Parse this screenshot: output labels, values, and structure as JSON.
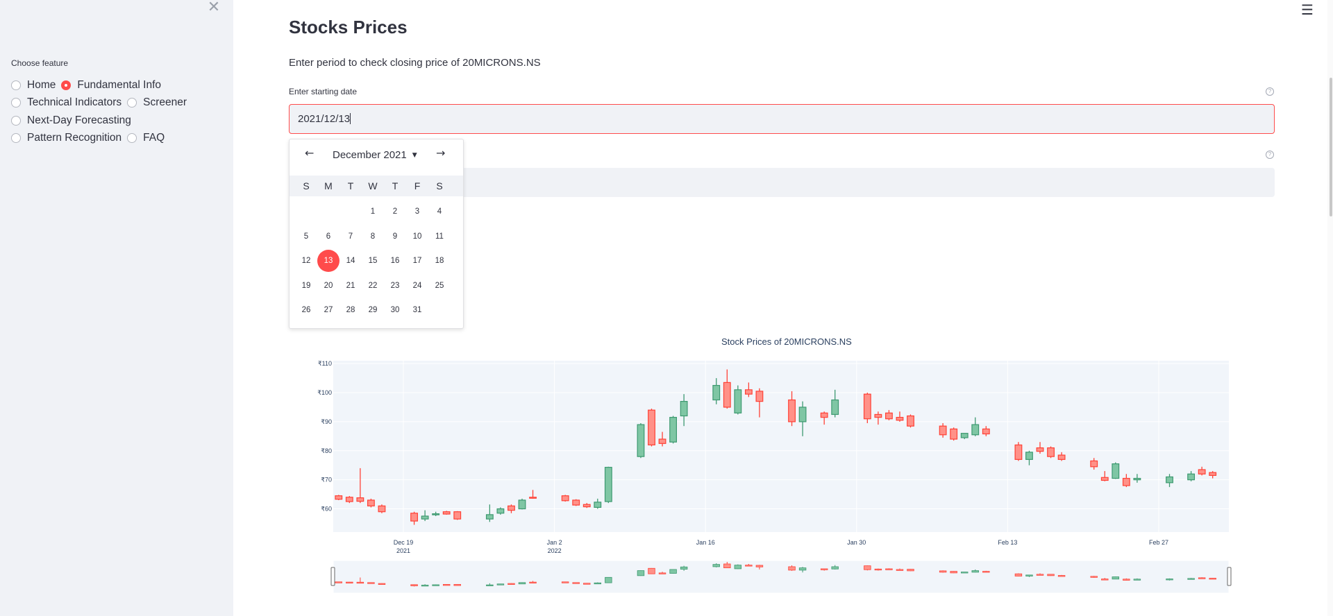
{
  "sidebar": {
    "close_icon": "close-icon",
    "label": "Choose feature",
    "options": [
      {
        "label": "Home",
        "selected": false
      },
      {
        "label": "Fundamental Info",
        "selected": true
      },
      {
        "label": "Technical Indicators",
        "selected": false
      },
      {
        "label": "Screener",
        "selected": false
      },
      {
        "label": "Next-Day Forecasting",
        "selected": false
      },
      {
        "label": "Pattern Recognition",
        "selected": false
      },
      {
        "label": "FAQ",
        "selected": false
      }
    ]
  },
  "header": {
    "menu_icon": "hamburger-icon"
  },
  "main": {
    "title": "Stocks Prices",
    "subtitle": "Enter period to check closing price of 20MICRONS.NS",
    "start_label": "Enter starting date",
    "start_value": "2021/12/13",
    "end_value": "",
    "help_icon": "help-icon"
  },
  "calendar": {
    "month_label": "December 2021",
    "prev_icon": "arrow-left-icon",
    "next_icon": "arrow-right-icon",
    "weekdays": [
      "S",
      "M",
      "T",
      "W",
      "T",
      "F",
      "S"
    ],
    "first_weekday": 3,
    "days_in_month": 31,
    "selected_day": 13
  },
  "chart_data": {
    "type": "candlestick",
    "title": "Stock Prices of 20MICRONS.NS",
    "y_ticks": [
      "₹60",
      "₹70",
      "₹80",
      "₹90",
      "₹100",
      "₹110"
    ],
    "ylim": [
      52,
      111
    ],
    "x_ticks": [
      {
        "date": "2021-12-19",
        "label": "Dec 19",
        "sub": "2021"
      },
      {
        "date": "2022-01-02",
        "label": "Jan 2",
        "sub": "2022"
      },
      {
        "date": "2022-01-16",
        "label": "Jan 16",
        "sub": ""
      },
      {
        "date": "2022-01-30",
        "label": "Jan 30",
        "sub": ""
      },
      {
        "date": "2022-02-13",
        "label": "Feb 13",
        "sub": ""
      },
      {
        "date": "2022-02-27",
        "label": "Feb 27",
        "sub": ""
      }
    ],
    "x_range": [
      "2021-12-13",
      "2022-03-05"
    ],
    "range_slider": true,
    "increasing_color": "#3d9970",
    "decreasing_color": "#ff4136",
    "candles": [
      {
        "date": "2021-12-13",
        "open": 64.5,
        "high": 64.8,
        "low": 63.0,
        "close": 63.3
      },
      {
        "date": "2021-12-14",
        "open": 64.0,
        "high": 64.4,
        "low": 62.0,
        "close": 62.5
      },
      {
        "date": "2021-12-15",
        "open": 63.8,
        "high": 74.0,
        "low": 62.0,
        "close": 62.6
      },
      {
        "date": "2021-12-16",
        "open": 63.0,
        "high": 63.5,
        "low": 60.5,
        "close": 61.0
      },
      {
        "date": "2021-12-17",
        "open": 61.0,
        "high": 61.5,
        "low": 58.5,
        "close": 59.0
      },
      {
        "date": "2021-12-20",
        "open": 58.5,
        "high": 59.0,
        "low": 54.5,
        "close": 55.8
      },
      {
        "date": "2021-12-21",
        "open": 56.5,
        "high": 59.5,
        "low": 55.8,
        "close": 57.5
      },
      {
        "date": "2021-12-22",
        "open": 58.0,
        "high": 59.0,
        "low": 57.5,
        "close": 58.3
      },
      {
        "date": "2021-12-23",
        "open": 59.0,
        "high": 59.3,
        "low": 58.0,
        "close": 58.2
      },
      {
        "date": "2021-12-24",
        "open": 59.0,
        "high": 59.2,
        "low": 56.2,
        "close": 56.5
      },
      {
        "date": "2021-12-27",
        "open": 56.5,
        "high": 61.5,
        "low": 55.5,
        "close": 58.0
      },
      {
        "date": "2021-12-28",
        "open": 58.5,
        "high": 60.5,
        "low": 58.0,
        "close": 60.0
      },
      {
        "date": "2021-12-29",
        "open": 61.0,
        "high": 61.5,
        "low": 58.5,
        "close": 59.5
      },
      {
        "date": "2021-12-30",
        "open": 60.0,
        "high": 63.5,
        "low": 59.8,
        "close": 63.0
      },
      {
        "date": "2021-12-31",
        "open": 64.0,
        "high": 66.5,
        "low": 63.5,
        "close": 63.8
      },
      {
        "date": "2022-01-03",
        "open": 64.5,
        "high": 64.8,
        "low": 62.5,
        "close": 62.8
      },
      {
        "date": "2022-01-04",
        "open": 63.0,
        "high": 63.3,
        "low": 61.0,
        "close": 61.3
      },
      {
        "date": "2022-01-05",
        "open": 61.5,
        "high": 62.0,
        "low": 60.3,
        "close": 60.7
      },
      {
        "date": "2022-01-06",
        "open": 60.5,
        "high": 63.5,
        "low": 60.0,
        "close": 62.3
      },
      {
        "date": "2022-01-07",
        "open": 62.5,
        "high": 74.5,
        "low": 62.0,
        "close": 74.3
      },
      {
        "date": "2022-01-10",
        "open": 78.0,
        "high": 89.5,
        "low": 77.5,
        "close": 89.0
      },
      {
        "date": "2022-01-11",
        "open": 94.0,
        "high": 94.5,
        "low": 81.5,
        "close": 82.0
      },
      {
        "date": "2022-01-12",
        "open": 84.0,
        "high": 86.5,
        "low": 81.5,
        "close": 82.5
      },
      {
        "date": "2022-01-13",
        "open": 83.0,
        "high": 92.0,
        "low": 82.5,
        "close": 91.5
      },
      {
        "date": "2022-01-14",
        "open": 92.0,
        "high": 99.5,
        "low": 88.5,
        "close": 97.0
      },
      {
        "date": "2022-01-17",
        "open": 97.5,
        "high": 105.0,
        "low": 96.0,
        "close": 102.5
      },
      {
        "date": "2022-01-18",
        "open": 103.5,
        "high": 108.0,
        "low": 94.5,
        "close": 95.0
      },
      {
        "date": "2022-01-19",
        "open": 93.0,
        "high": 102.5,
        "low": 92.5,
        "close": 101.0
      },
      {
        "date": "2022-01-20",
        "open": 101.0,
        "high": 103.5,
        "low": 98.5,
        "close": 99.5
      },
      {
        "date": "2022-01-21",
        "open": 100.5,
        "high": 101.5,
        "low": 91.5,
        "close": 97.0
      },
      {
        "date": "2022-01-24",
        "open": 97.5,
        "high": 100.5,
        "low": 88.5,
        "close": 90.0
      },
      {
        "date": "2022-01-25",
        "open": 90.0,
        "high": 97.0,
        "low": 85.0,
        "close": 95.0
      },
      {
        "date": "2022-01-27",
        "open": 93.0,
        "high": 93.5,
        "low": 89.0,
        "close": 91.5
      },
      {
        "date": "2022-01-28",
        "open": 92.5,
        "high": 101.0,
        "low": 91.5,
        "close": 97.5
      },
      {
        "date": "2022-01-31",
        "open": 99.5,
        "high": 100.0,
        "low": 89.5,
        "close": 91.0
      },
      {
        "date": "2022-02-01",
        "open": 92.5,
        "high": 93.5,
        "low": 89.0,
        "close": 91.5
      },
      {
        "date": "2022-02-02",
        "open": 93.0,
        "high": 94.0,
        "low": 90.5,
        "close": 91.0
      },
      {
        "date": "2022-02-03",
        "open": 91.5,
        "high": 93.5,
        "low": 90.0,
        "close": 90.5
      },
      {
        "date": "2022-02-04",
        "open": 92.0,
        "high": 92.5,
        "low": 88.0,
        "close": 88.5
      },
      {
        "date": "2022-02-07",
        "open": 88.5,
        "high": 89.5,
        "low": 84.5,
        "close": 85.5
      },
      {
        "date": "2022-02-08",
        "open": 87.5,
        "high": 88.0,
        "low": 83.5,
        "close": 84.0
      },
      {
        "date": "2022-02-09",
        "open": 84.5,
        "high": 86.0,
        "low": 84.0,
        "close": 86.0
      },
      {
        "date": "2022-02-10",
        "open": 85.5,
        "high": 91.5,
        "low": 85.0,
        "close": 89.0
      },
      {
        "date": "2022-02-11",
        "open": 87.5,
        "high": 88.5,
        "low": 85.0,
        "close": 85.8
      },
      {
        "date": "2022-02-14",
        "open": 82.0,
        "high": 83.0,
        "low": 76.5,
        "close": 77.0
      },
      {
        "date": "2022-02-15",
        "open": 77.0,
        "high": 80.0,
        "low": 75.0,
        "close": 79.5
      },
      {
        "date": "2022-02-16",
        "open": 81.0,
        "high": 83.0,
        "low": 79.0,
        "close": 79.8
      },
      {
        "date": "2022-02-17",
        "open": 81.0,
        "high": 81.5,
        "low": 77.5,
        "close": 78.0
      },
      {
        "date": "2022-02-18",
        "open": 78.5,
        "high": 79.5,
        "low": 76.5,
        "close": 77.0
      },
      {
        "date": "2022-02-21",
        "open": 76.5,
        "high": 77.5,
        "low": 73.5,
        "close": 74.5
      },
      {
        "date": "2022-02-22",
        "open": 70.8,
        "high": 73.0,
        "low": 69.5,
        "close": 69.8
      },
      {
        "date": "2022-02-23",
        "open": 70.5,
        "high": 76.0,
        "low": 70.3,
        "close": 75.5
      },
      {
        "date": "2022-02-24",
        "open": 70.5,
        "high": 72.0,
        "low": 67.5,
        "close": 68.0
      },
      {
        "date": "2022-02-25",
        "open": 70.0,
        "high": 72.0,
        "low": 69.0,
        "close": 70.5
      },
      {
        "date": "2022-02-28",
        "open": 69.0,
        "high": 72.0,
        "low": 67.5,
        "close": 71.0
      },
      {
        "date": "2022-03-02",
        "open": 70.0,
        "high": 73.0,
        "low": 69.5,
        "close": 72.0
      },
      {
        "date": "2022-03-03",
        "open": 73.5,
        "high": 74.5,
        "low": 71.5,
        "close": 72.0
      },
      {
        "date": "2022-03-04",
        "open": 72.5,
        "high": 73.0,
        "low": 70.5,
        "close": 71.5
      }
    ]
  }
}
